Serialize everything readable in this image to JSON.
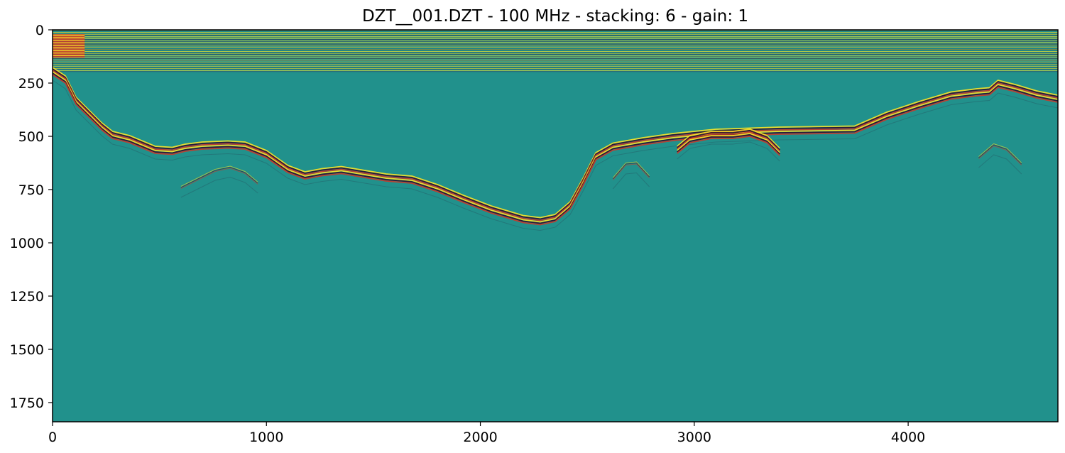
{
  "chart_data": {
    "type": "heatmap",
    "title": "DZT__001.DZT - 100 MHz - stacking: 6 - gain: 1",
    "xlabel": "",
    "ylabel": "",
    "xlim": [
      0,
      4700
    ],
    "ylim": [
      1840,
      0
    ],
    "y_inverted": true,
    "x_ticks": [
      0,
      1000,
      2000,
      3000,
      4000
    ],
    "y_ticks": [
      0,
      250,
      500,
      750,
      1000,
      1250,
      1500,
      1750
    ],
    "colormap": "viridis",
    "colors": {
      "background": "#21918c",
      "reflector_high": "#fde725",
      "reflector_low": "#2a0d2e",
      "reflector_mid": "#c83a2a",
      "frame": "#000000"
    },
    "direct_wave_band": {
      "y_top": 0,
      "y_bottom": 200
    },
    "reflectors": [
      {
        "name": "primary",
        "strong": true,
        "points": [
          [
            0,
            190
          ],
          [
            60,
            230
          ],
          [
            110,
            330
          ],
          [
            170,
            390
          ],
          [
            230,
            450
          ],
          [
            280,
            490
          ],
          [
            360,
            510
          ],
          [
            480,
            560
          ],
          [
            560,
            565
          ],
          [
            620,
            550
          ],
          [
            700,
            540
          ],
          [
            820,
            535
          ],
          [
            900,
            540
          ],
          [
            1000,
            580
          ],
          [
            1100,
            650
          ],
          [
            1180,
            680
          ],
          [
            1260,
            665
          ],
          [
            1350,
            655
          ],
          [
            1440,
            670
          ],
          [
            1560,
            690
          ],
          [
            1680,
            700
          ],
          [
            1800,
            740
          ],
          [
            1920,
            790
          ],
          [
            2050,
            840
          ],
          [
            2200,
            885
          ],
          [
            2280,
            895
          ],
          [
            2350,
            880
          ],
          [
            2420,
            820
          ],
          [
            2480,
            710
          ],
          [
            2540,
            590
          ],
          [
            2620,
            545
          ],
          [
            2760,
            520
          ],
          [
            2900,
            500
          ],
          [
            3100,
            480
          ],
          [
            3400,
            470
          ],
          [
            3750,
            465
          ],
          [
            3900,
            400
          ],
          [
            4050,
            350
          ],
          [
            4200,
            305
          ],
          [
            4320,
            290
          ],
          [
            4380,
            285
          ],
          [
            4420,
            250
          ],
          [
            4500,
            270
          ],
          [
            4600,
            300
          ],
          [
            4700,
            320
          ]
        ]
      },
      {
        "name": "hyperbola-mid-left",
        "strong": false,
        "points": [
          [
            600,
            740
          ],
          [
            680,
            700
          ],
          [
            760,
            660
          ],
          [
            830,
            645
          ],
          [
            900,
            670
          ],
          [
            960,
            720
          ]
        ]
      },
      {
        "name": "hyperbola-mid-right",
        "strong": false,
        "points": [
          [
            2620,
            700
          ],
          [
            2680,
            630
          ],
          [
            2730,
            625
          ],
          [
            2790,
            690
          ]
        ]
      },
      {
        "name": "hyperbola-right",
        "strong": true,
        "points": [
          [
            2920,
            560
          ],
          [
            2980,
            510
          ],
          [
            3080,
            490
          ],
          [
            3180,
            490
          ],
          [
            3260,
            480
          ],
          [
            3340,
            510
          ],
          [
            3400,
            570
          ]
        ]
      },
      {
        "name": "hyperbola-far-right",
        "strong": false,
        "points": [
          [
            4330,
            600
          ],
          [
            4400,
            540
          ],
          [
            4460,
            560
          ],
          [
            4530,
            630
          ]
        ]
      }
    ]
  }
}
